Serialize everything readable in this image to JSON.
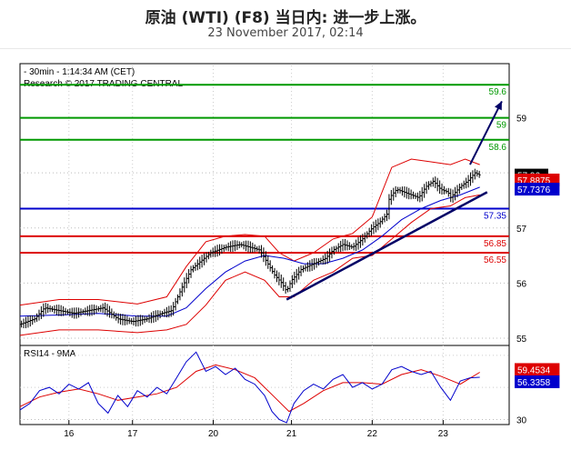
{
  "title": "原油 (WTI) (F8) 当日内: 进一步上涨。",
  "subtitle": "23 November 2017, 02:14",
  "header_lines": [
    "- 30min - 1:14:34 AM (CET)",
    "Research © 2017 TRADING CENTRAL"
  ],
  "rsi_label": "RSI14 - 9MA",
  "colors": {
    "upper_border": "#000000",
    "sma": "#0000cc",
    "bollinger": "#dd0000",
    "resistance": "#009900",
    "pivot": "#0000cc",
    "support": "#dd0000",
    "arrow": "#000066",
    "trendline": "#000066"
  },
  "chart_data": [
    {
      "type": "line",
      "name": "price",
      "ylim": [
        54.9,
        59.95
      ],
      "yticks": [
        55,
        56,
        57,
        58,
        59
      ],
      "x_day_labels": [
        "16",
        "17",
        "20",
        "21",
        "22",
        "23"
      ],
      "x_day_positions": [
        0.1,
        0.23,
        0.395,
        0.555,
        0.72,
        0.865
      ],
      "levels": [
        {
          "value": 59.6,
          "label": "59.6",
          "color": "#009900"
        },
        {
          "value": 59.0,
          "label": "59",
          "color": "#009900"
        },
        {
          "value": 58.6,
          "label": "58.6",
          "color": "#009900"
        },
        {
          "value": 57.35,
          "label": "57.35",
          "color": "#0000cc"
        },
        {
          "value": 56.85,
          "label": "56.85",
          "color": "#dd0000"
        },
        {
          "value": 56.55,
          "label": "56.55",
          "color": "#dd0000"
        }
      ],
      "price_tags": [
        {
          "value": 57.96,
          "label": "57.96",
          "bg": "#000000",
          "fg": "#ffffff"
        },
        {
          "value": 57.8875,
          "label": "57.8875",
          "bg": "#dd0000",
          "fg": "#ffffff"
        },
        {
          "value": 57.7376,
          "label": "57.7376",
          "bg": "#0000cc",
          "fg": "#ffffff"
        }
      ],
      "close_path": [
        [
          0.0,
          55.25
        ],
        [
          0.03,
          55.35
        ],
        [
          0.05,
          55.55
        ],
        [
          0.08,
          55.5
        ],
        [
          0.11,
          55.45
        ],
        [
          0.14,
          55.5
        ],
        [
          0.17,
          55.55
        ],
        [
          0.2,
          55.35
        ],
        [
          0.23,
          55.3
        ],
        [
          0.26,
          55.35
        ],
        [
          0.29,
          55.45
        ],
        [
          0.31,
          55.5
        ],
        [
          0.33,
          55.9
        ],
        [
          0.35,
          56.25
        ],
        [
          0.37,
          56.4
        ],
        [
          0.39,
          56.55
        ],
        [
          0.42,
          56.65
        ],
        [
          0.45,
          56.7
        ],
        [
          0.47,
          56.65
        ],
        [
          0.49,
          56.6
        ],
        [
          0.51,
          56.3
        ],
        [
          0.52,
          56.15
        ],
        [
          0.535,
          56.0
        ],
        [
          0.545,
          55.85
        ],
        [
          0.555,
          56.05
        ],
        [
          0.575,
          56.25
        ],
        [
          0.6,
          56.35
        ],
        [
          0.625,
          56.45
        ],
        [
          0.64,
          56.6
        ],
        [
          0.66,
          56.7
        ],
        [
          0.68,
          56.65
        ],
        [
          0.7,
          56.8
        ],
        [
          0.72,
          57.0
        ],
        [
          0.735,
          57.1
        ],
        [
          0.75,
          57.25
        ],
        [
          0.755,
          57.55
        ],
        [
          0.77,
          57.7
        ],
        [
          0.785,
          57.65
        ],
        [
          0.8,
          57.6
        ],
        [
          0.815,
          57.55
        ],
        [
          0.83,
          57.75
        ],
        [
          0.845,
          57.85
        ],
        [
          0.86,
          57.7
        ],
        [
          0.875,
          57.65
        ],
        [
          0.88,
          57.55
        ],
        [
          0.9,
          57.75
        ],
        [
          0.915,
          57.85
        ],
        [
          0.93,
          58.0
        ],
        [
          0.94,
          57.96
        ]
      ],
      "sma_path": [
        [
          0.0,
          55.4
        ],
        [
          0.08,
          55.42
        ],
        [
          0.16,
          55.45
        ],
        [
          0.24,
          55.4
        ],
        [
          0.3,
          55.4
        ],
        [
          0.34,
          55.55
        ],
        [
          0.38,
          55.9
        ],
        [
          0.42,
          56.2
        ],
        [
          0.46,
          56.4
        ],
        [
          0.5,
          56.5
        ],
        [
          0.54,
          56.45
        ],
        [
          0.58,
          56.35
        ],
        [
          0.62,
          56.35
        ],
        [
          0.66,
          56.45
        ],
        [
          0.7,
          56.6
        ],
        [
          0.74,
          56.85
        ],
        [
          0.78,
          57.15
        ],
        [
          0.82,
          57.35
        ],
        [
          0.86,
          57.5
        ],
        [
          0.9,
          57.6
        ],
        [
          0.94,
          57.74
        ]
      ],
      "boll_upper": [
        [
          0.0,
          55.6
        ],
        [
          0.08,
          55.7
        ],
        [
          0.16,
          55.7
        ],
        [
          0.24,
          55.62
        ],
        [
          0.3,
          55.75
        ],
        [
          0.34,
          56.3
        ],
        [
          0.38,
          56.75
        ],
        [
          0.42,
          56.85
        ],
        [
          0.46,
          56.88
        ],
        [
          0.5,
          56.85
        ],
        [
          0.53,
          56.55
        ],
        [
          0.56,
          56.4
        ],
        [
          0.6,
          56.55
        ],
        [
          0.64,
          56.8
        ],
        [
          0.68,
          56.9
        ],
        [
          0.72,
          57.2
        ],
        [
          0.76,
          58.1
        ],
        [
          0.8,
          58.25
        ],
        [
          0.84,
          58.2
        ],
        [
          0.88,
          58.15
        ],
        [
          0.91,
          58.25
        ],
        [
          0.94,
          58.15
        ]
      ],
      "boll_lower": [
        [
          0.0,
          55.05
        ],
        [
          0.08,
          55.15
        ],
        [
          0.16,
          55.15
        ],
        [
          0.24,
          55.1
        ],
        [
          0.3,
          55.15
        ],
        [
          0.34,
          55.25
        ],
        [
          0.38,
          55.6
        ],
        [
          0.42,
          56.05
        ],
        [
          0.46,
          56.2
        ],
        [
          0.5,
          56.05
        ],
        [
          0.53,
          55.75
        ],
        [
          0.56,
          55.75
        ],
        [
          0.6,
          56.05
        ],
        [
          0.64,
          56.2
        ],
        [
          0.68,
          56.45
        ],
        [
          0.72,
          56.5
        ],
        [
          0.76,
          56.8
        ],
        [
          0.8,
          57.1
        ],
        [
          0.84,
          57.35
        ],
        [
          0.88,
          57.4
        ],
        [
          0.91,
          57.55
        ],
        [
          0.94,
          57.6
        ]
      ],
      "trendline": [
        [
          0.545,
          55.7
        ],
        [
          0.955,
          57.65
        ]
      ],
      "projection_arrow": [
        [
          0.92,
          58.15
        ],
        [
          0.985,
          59.3
        ]
      ]
    },
    {
      "type": "line",
      "name": "RSI14",
      "ylim": [
        28,
        75
      ],
      "yticks": [
        30
      ],
      "price_tags": [
        {
          "value": 59.4534,
          "label": "59.4534",
          "bg": "#dd0000",
          "fg": "#ffffff"
        },
        {
          "value": 56.3358,
          "label": "56.3358",
          "bg": "#0000cc",
          "fg": "#ffffff"
        }
      ],
      "rsi_path": [
        [
          0.0,
          36
        ],
        [
          0.02,
          40
        ],
        [
          0.04,
          48
        ],
        [
          0.06,
          50
        ],
        [
          0.08,
          46
        ],
        [
          0.1,
          52
        ],
        [
          0.12,
          49
        ],
        [
          0.14,
          53
        ],
        [
          0.16,
          40
        ],
        [
          0.18,
          34
        ],
        [
          0.2,
          45
        ],
        [
          0.22,
          38
        ],
        [
          0.24,
          48
        ],
        [
          0.26,
          44
        ],
        [
          0.28,
          50
        ],
        [
          0.3,
          46
        ],
        [
          0.32,
          56
        ],
        [
          0.34,
          66
        ],
        [
          0.36,
          72
        ],
        [
          0.38,
          60
        ],
        [
          0.4,
          63
        ],
        [
          0.42,
          58
        ],
        [
          0.44,
          62
        ],
        [
          0.46,
          55
        ],
        [
          0.48,
          52
        ],
        [
          0.5,
          45
        ],
        [
          0.515,
          35
        ],
        [
          0.53,
          30
        ],
        [
          0.545,
          28
        ],
        [
          0.56,
          40
        ],
        [
          0.58,
          48
        ],
        [
          0.6,
          52
        ],
        [
          0.62,
          49
        ],
        [
          0.64,
          55
        ],
        [
          0.66,
          58
        ],
        [
          0.68,
          50
        ],
        [
          0.7,
          53
        ],
        [
          0.72,
          49
        ],
        [
          0.74,
          52
        ],
        [
          0.76,
          61
        ],
        [
          0.78,
          63
        ],
        [
          0.8,
          60
        ],
        [
          0.82,
          58
        ],
        [
          0.84,
          60
        ],
        [
          0.86,
          50
        ],
        [
          0.88,
          42
        ],
        [
          0.9,
          54
        ],
        [
          0.92,
          56
        ],
        [
          0.94,
          56.3
        ]
      ],
      "ma_path": [
        [
          0.0,
          38
        ],
        [
          0.04,
          44
        ],
        [
          0.08,
          47
        ],
        [
          0.12,
          49
        ],
        [
          0.16,
          46
        ],
        [
          0.2,
          42
        ],
        [
          0.24,
          44
        ],
        [
          0.28,
          46
        ],
        [
          0.32,
          50
        ],
        [
          0.36,
          60
        ],
        [
          0.4,
          64
        ],
        [
          0.44,
          61
        ],
        [
          0.48,
          56
        ],
        [
          0.52,
          44
        ],
        [
          0.55,
          35
        ],
        [
          0.58,
          40
        ],
        [
          0.62,
          48
        ],
        [
          0.66,
          53
        ],
        [
          0.7,
          53
        ],
        [
          0.74,
          52
        ],
        [
          0.78,
          58
        ],
        [
          0.82,
          61
        ],
        [
          0.86,
          57
        ],
        [
          0.9,
          52
        ],
        [
          0.94,
          59.45
        ]
      ]
    }
  ]
}
